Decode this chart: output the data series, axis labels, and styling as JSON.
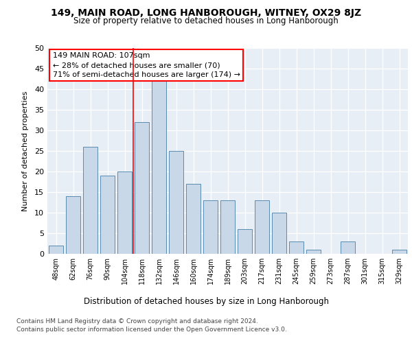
{
  "title1": "149, MAIN ROAD, LONG HANBOROUGH, WITNEY, OX29 8JZ",
  "title2": "Size of property relative to detached houses in Long Hanborough",
  "xlabel": "Distribution of detached houses by size in Long Hanborough",
  "ylabel": "Number of detached properties",
  "categories": [
    "48sqm",
    "62sqm",
    "76sqm",
    "90sqm",
    "104sqm",
    "118sqm",
    "132sqm",
    "146sqm",
    "160sqm",
    "174sqm",
    "189sqm",
    "203sqm",
    "217sqm",
    "231sqm",
    "245sqm",
    "259sqm",
    "273sqm",
    "287sqm",
    "301sqm",
    "315sqm",
    "329sqm"
  ],
  "values": [
    2,
    14,
    26,
    19,
    20,
    32,
    42,
    25,
    17,
    13,
    13,
    6,
    13,
    10,
    3,
    1,
    0,
    3,
    0,
    0,
    1
  ],
  "bar_color": "#c8d8e8",
  "bar_edge_color": "#5a8ab0",
  "vline_x": 4.5,
  "vline_color": "red",
  "annotation_title": "149 MAIN ROAD: 107sqm",
  "annotation_line2": "← 28% of detached houses are smaller (70)",
  "annotation_line3": "71% of semi-detached houses are larger (174) →",
  "ylim": [
    0,
    50
  ],
  "yticks": [
    0,
    5,
    10,
    15,
    20,
    25,
    30,
    35,
    40,
    45,
    50
  ],
  "footnote1": "Contains HM Land Registry data © Crown copyright and database right 2024.",
  "footnote2": "Contains public sector information licensed under the Open Government Licence v3.0.",
  "plot_bg_color": "#e8eef5"
}
